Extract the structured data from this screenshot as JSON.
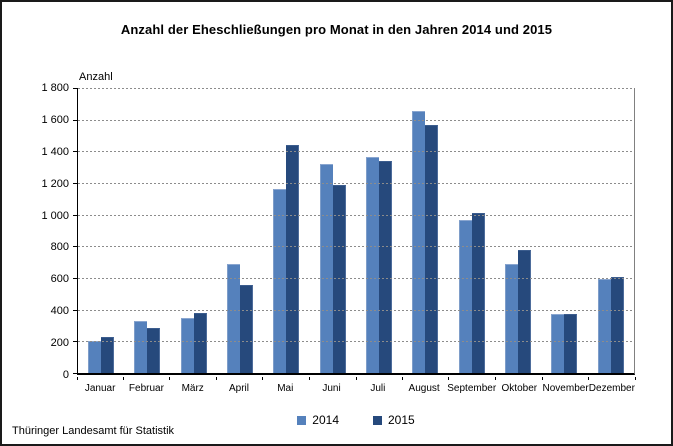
{
  "footer": "Thüringer Landesamt für Statistik",
  "chart_data": {
    "type": "bar",
    "title": "Anzahl der Eheschließungen pro Monat in den Jahren 2014 und 2015",
    "ylabel": "Anzahl",
    "xlabel": "",
    "categories": [
      "Januar",
      "Februar",
      "März",
      "April",
      "Mai",
      "Juni",
      "Juli",
      "August",
      "September",
      "Oktober",
      "November",
      "Dezember"
    ],
    "series": [
      {
        "name": "2014",
        "color": "#5581BC",
        "values": [
          205,
          330,
          350,
          690,
          1160,
          1320,
          1365,
          1655,
          965,
          690,
          375,
          595
        ]
      },
      {
        "name": "2015",
        "color": "#26497C",
        "values": [
          230,
          285,
          380,
          555,
          1440,
          1190,
          1340,
          1565,
          1010,
          780,
          375,
          605
        ]
      }
    ],
    "ylim": [
      0,
      1800
    ],
    "ytick_interval": 200,
    "ytick_labels": [
      "1 800",
      "1 600",
      "1 400",
      "1 200",
      "1 000",
      "800",
      "600",
      "400",
      "200",
      "0"
    ],
    "grid": "horizontal-dotted",
    "legend_position": "bottom"
  }
}
